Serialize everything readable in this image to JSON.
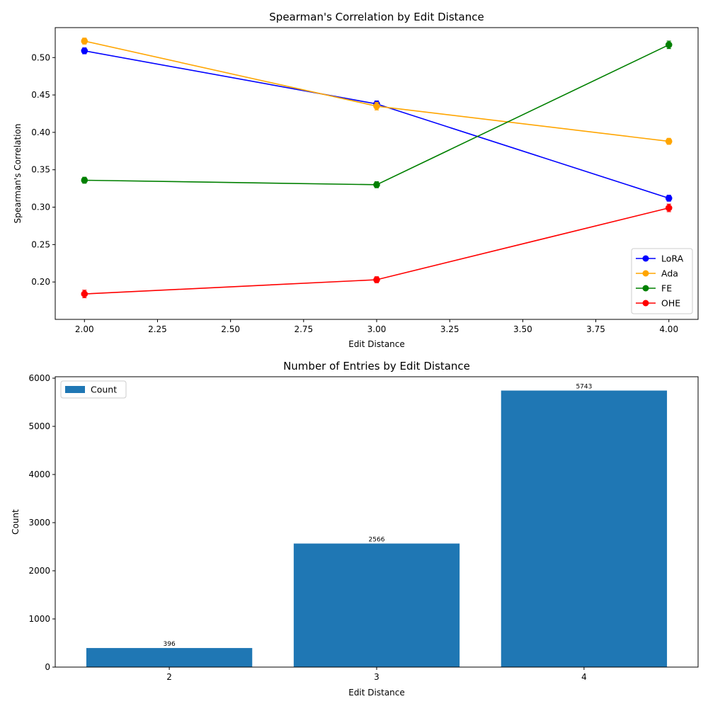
{
  "chart_data": [
    {
      "type": "line",
      "title": "Spearman's Correlation by Edit Distance",
      "xlabel": "Edit Distance",
      "ylabel": "Spearman's Correlation",
      "x": [
        2,
        3,
        4
      ],
      "xlim": [
        1.9,
        4.1
      ],
      "ylim": [
        0.15,
        0.54
      ],
      "xticks": [
        2.0,
        2.25,
        2.5,
        2.75,
        3.0,
        3.25,
        3.5,
        3.75,
        4.0
      ],
      "xtick_labels": [
        "2.00",
        "2.25",
        "2.50",
        "2.75",
        "3.00",
        "3.25",
        "3.50",
        "3.75",
        "4.00"
      ],
      "yticks": [
        0.2,
        0.25,
        0.3,
        0.35,
        0.4,
        0.45,
        0.5
      ],
      "ytick_labels": [
        "0.20",
        "0.25",
        "0.30",
        "0.35",
        "0.40",
        "0.45",
        "0.50"
      ],
      "grid": false,
      "legend_position": "lower-right",
      "series": [
        {
          "name": "LoRA",
          "color": "#0000ff",
          "values": [
            0.509,
            0.438,
            0.312
          ],
          "errors": [
            0.004,
            0.004,
            0.004
          ]
        },
        {
          "name": "Ada",
          "color": "#ffa500",
          "values": [
            0.522,
            0.435,
            0.388
          ],
          "errors": [
            0.004,
            0.005,
            0.004
          ]
        },
        {
          "name": "FE",
          "color": "#008000",
          "values": [
            0.336,
            0.33,
            0.517
          ],
          "errors": [
            0.004,
            0.004,
            0.005
          ]
        },
        {
          "name": "OHE",
          "color": "#ff0000",
          "values": [
            0.184,
            0.203,
            0.299
          ],
          "errors": [
            0.005,
            0.004,
            0.005
          ]
        }
      ]
    },
    {
      "type": "bar",
      "title": "Number of Entries by Edit Distance",
      "xlabel": "Edit Distance",
      "ylabel": "Count",
      "categories": [
        "2",
        "3",
        "4"
      ],
      "values": [
        396,
        2566,
        5743
      ],
      "value_labels": [
        "396",
        "2566",
        "5743"
      ],
      "ylim": [
        0,
        6030
      ],
      "yticks": [
        0,
        1000,
        2000,
        3000,
        4000,
        5000,
        6000
      ],
      "ytick_labels": [
        "0",
        "1000",
        "2000",
        "3000",
        "4000",
        "5000",
        "6000"
      ],
      "grid": false,
      "legend_position": "upper-left",
      "series": [
        {
          "name": "Count",
          "color": "#1f77b4"
        }
      ]
    }
  ]
}
